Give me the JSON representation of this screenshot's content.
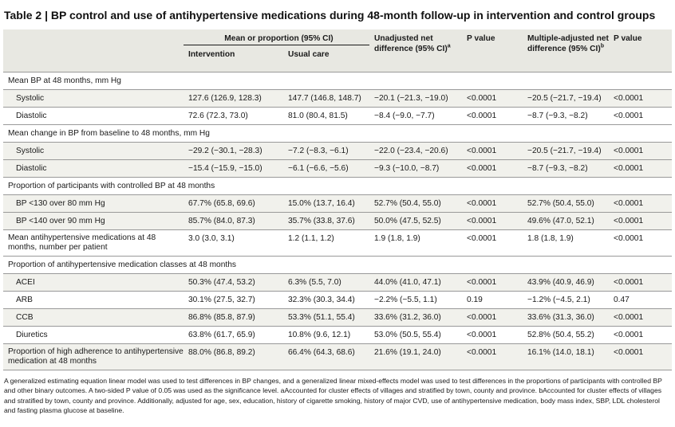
{
  "title": "Table 2 | BP control and use of antihypertensive medications during 48-month follow-up in intervention and control groups",
  "headers": {
    "group": "Mean or proportion (95% CI)",
    "intervention": "Intervention",
    "usual_care": "Usual care",
    "unadjusted": "Unadjusted net difference (95% CI)",
    "unadjusted_sup": "a",
    "p1": "P value",
    "adjusted": "Multiple-adjusted net difference (95% CI)",
    "adjusted_sup": "b",
    "p2": "P value"
  },
  "sections": [
    {
      "label": "Mean BP at 48 months, mm Hg",
      "rows": [
        {
          "label": "Systolic",
          "intervention": "127.6 (126.9, 128.3)",
          "usual": "147.7 (146.8, 148.7)",
          "unadj": "−20.1 (−21.3, −19.0)",
          "p1": "<0.0001",
          "adj": "−20.5 (−21.7, −19.4)",
          "p2": "<0.0001"
        },
        {
          "label": "Diastolic",
          "intervention": "72.6 (72.3, 73.0)",
          "usual": "81.0 (80.4, 81.5)",
          "unadj": "−8.4 (−9.0, −7.7)",
          "p1": "<0.0001",
          "adj": "−8.7 (−9.3, −8.2)",
          "p2": "<0.0001"
        }
      ]
    },
    {
      "label": "Mean change in BP from baseline to 48 months, mm Hg",
      "rows": [
        {
          "label": "Systolic",
          "intervention": "−29.2 (−30.1, −28.3)",
          "usual": "−7.2 (−8.3, −6.1)",
          "unadj": "−22.0 (−23.4, −20.6)",
          "p1": "<0.0001",
          "adj": "−20.5 (−21.7, −19.4)",
          "p2": "<0.0001"
        },
        {
          "label": "Diastolic",
          "intervention": "−15.4 (−15.9, −15.0)",
          "usual": "−6.1 (−6.6, −5.6)",
          "unadj": "−9.3 (−10.0, −8.7)",
          "p1": "<0.0001",
          "adj": "−8.7 (−9.3, −8.2)",
          "p2": "<0.0001"
        }
      ]
    },
    {
      "label": "Proportion of participants with controlled BP at 48 months",
      "rows": [
        {
          "label": "BP <130 over 80 mm Hg",
          "intervention": "67.7% (65.8, 69.6)",
          "usual": "15.0% (13.7, 16.4)",
          "unadj": "52.7% (50.4, 55.0)",
          "p1": "<0.0001",
          "adj": "52.7% (50.4, 55.0)",
          "p2": "<0.0001"
        },
        {
          "label": "BP <140 over 90 mm Hg",
          "intervention": "85.7% (84.0, 87.3)",
          "usual": "35.7% (33.8, 37.6)",
          "unadj": "50.0% (47.5, 52.5)",
          "p1": "<0.0001",
          "adj": "49.6% (47.0, 52.1)",
          "p2": "<0.0001"
        }
      ]
    }
  ],
  "mean_meds": {
    "label": "Mean antihypertensive medications at 48 months, number per patient",
    "intervention": "3.0 (3.0, 3.1)",
    "usual": "1.2 (1.1, 1.2)",
    "unadj": "1.9 (1.8, 1.9)",
    "p1": "<0.0001",
    "adj": "1.8 (1.8, 1.9)",
    "p2": "<0.0001"
  },
  "classes": {
    "label": "Proportion of antihypertensive medication classes at 48 months",
    "rows": [
      {
        "label": "ACEI",
        "intervention": "50.3% (47.4, 53.2)",
        "usual": "6.3% (5.5, 7.0)",
        "unadj": "44.0% (41.0, 47.1)",
        "p1": "<0.0001",
        "adj": "43.9% (40.9, 46.9)",
        "p2": "<0.0001"
      },
      {
        "label": "ARB",
        "intervention": "30.1% (27.5, 32.7)",
        "usual": "32.3% (30.3, 34.4)",
        "unadj": "−2.2% (−5.5, 1.1)",
        "p1": "0.19",
        "adj": "−1.2% (−4.5, 2.1)",
        "p2": "0.47"
      },
      {
        "label": "CCB",
        "intervention": "86.8% (85.8, 87.9)",
        "usual": "53.3% (51.1, 55.4)",
        "unadj": "33.6% (31.2, 36.0)",
        "p1": "<0.0001",
        "adj": "33.6% (31.3, 36.0)",
        "p2": "<0.0001"
      },
      {
        "label": "Diuretics",
        "intervention": "63.8% (61.7, 65.9)",
        "usual": "10.8% (9.6, 12.1)",
        "unadj": "53.0% (50.5, 55.4)",
        "p1": "<0.0001",
        "adj": "52.8% (50.4, 55.2)",
        "p2": "<0.0001"
      }
    ]
  },
  "adherence": {
    "label": "Proportion of high adherence to antihypertensive medication at 48 months",
    "intervention": "88.0% (86.8, 89.2)",
    "usual": "66.4% (64.3, 68.6)",
    "unadj": "21.6% (19.1, 24.0)",
    "p1": "<0.0001",
    "adj": "16.1% (14.0, 18.1)",
    "p2": "<0.0001"
  },
  "footnote": "A generalized estimating equation linear model was used to test differences in BP changes, and a generalized linear mixed-effects model was used to test differences in the proportions of participants with controlled BP and other binary outcomes. A two-sided P value of 0.05 was used as the significance level. aAccounted for cluster effects of villages and stratified by town, county and province. bAccounted for cluster effects of villages and stratified by town, county and province. Additionally, adjusted for age, sex, education, history of cigarette smoking, history of major CVD, use of antihypertensive medication, body mass index, SBP, LDL cholesterol and fasting plasma glucose at baseline."
}
